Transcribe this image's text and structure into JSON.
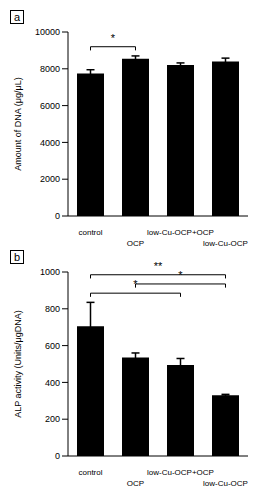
{
  "chart_data": [
    {
      "type": "bar",
      "title": "a",
      "categories": [
        "control",
        "OCP",
        "low-Cu-OCP+OCP",
        "low-Cu-OCP"
      ],
      "values": [
        7750,
        8550,
        8200,
        8400
      ],
      "errors": [
        200,
        150,
        120,
        180
      ],
      "color": "#000000",
      "y_label": "Amount of DNA (μg/μL)",
      "ylim": [
        0,
        10000
      ],
      "yticks": [
        0,
        2000,
        4000,
        6000,
        8000,
        10000
      ],
      "grid": false,
      "annotations": [
        {
          "from": "control",
          "to": "OCP",
          "text": "*"
        }
      ]
    },
    {
      "type": "bar",
      "title": "b",
      "categories": [
        "control",
        "OCP",
        "low-Cu-OCP+OCP",
        "low-Cu-OCP"
      ],
      "values": [
        705,
        535,
        495,
        330
      ],
      "errors": [
        130,
        25,
        35,
        5
      ],
      "color": "#000000",
      "y_label": "ALP activity (Units/μgDNA)",
      "ylim": [
        0,
        1000
      ],
      "yticks": [
        0,
        200,
        400,
        600,
        800,
        1000
      ],
      "grid": false,
      "annotations": [
        {
          "from": "control",
          "to": "low-Cu-OCP",
          "text": "**"
        },
        {
          "from": "control",
          "to": "low-Cu-OCP+OCP",
          "text": "*"
        },
        {
          "from": "OCP",
          "to": "low-Cu-OCP",
          "text": "*"
        }
      ]
    }
  ]
}
